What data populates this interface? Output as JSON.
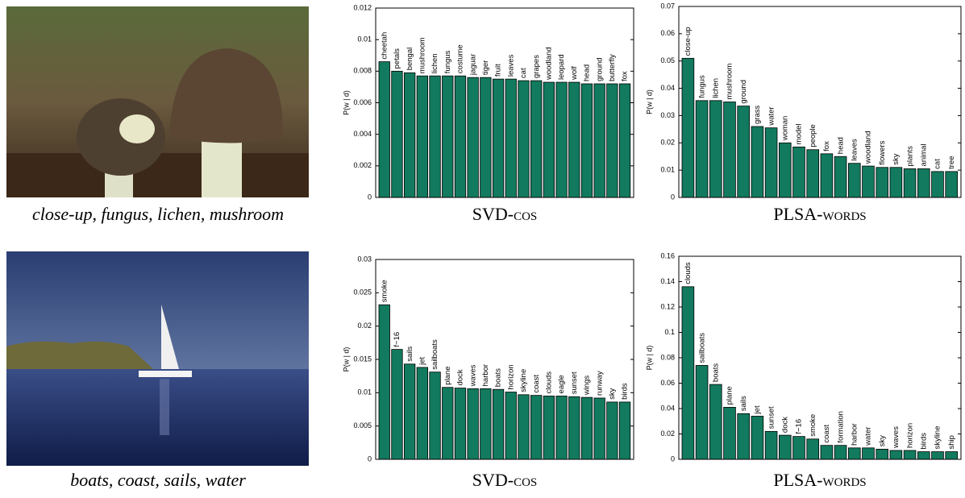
{
  "images": [
    {
      "caption": "close-up, fungus, lichen, mushroom"
    },
    {
      "caption": "boats, coast, sails, water"
    }
  ],
  "chart_data": [
    {
      "type": "bar",
      "title": "SVD-cos",
      "ylabel": "P(w | d)",
      "color": "#127a5e",
      "categories": [
        "cheetah",
        "petals",
        "bengal",
        "mushroom",
        "lichen",
        "fungus",
        "costume",
        "jaguar",
        "tiger",
        "fruit",
        "leaves",
        "cat",
        "grapes",
        "woodland",
        "leopard",
        "wolf",
        "head",
        "ground",
        "butterfly",
        "fox"
      ],
      "values": [
        0.0086,
        0.008,
        0.0079,
        0.0077,
        0.0077,
        0.0077,
        0.0077,
        0.0076,
        0.0076,
        0.0075,
        0.0075,
        0.0074,
        0.0074,
        0.0073,
        0.0073,
        0.0073,
        0.0072,
        0.0072,
        0.0072,
        0.0072
      ],
      "ylim": [
        0,
        0.012
      ],
      "yticks": [
        0,
        0.002,
        0.004,
        0.006,
        0.008,
        0.01,
        0.012
      ]
    },
    {
      "type": "bar",
      "title": "PLSA-words",
      "ylabel": "P(w | d)",
      "color": "#127a5e",
      "categories": [
        "close-up",
        "fungus",
        "lichen",
        "mushroom",
        "ground",
        "grass",
        "water",
        "woman",
        "model",
        "people",
        "fox",
        "head",
        "leaves",
        "woodland",
        "flowers",
        "sky",
        "plants",
        "animal",
        "cat",
        "tree"
      ],
      "values": [
        0.051,
        0.0355,
        0.0355,
        0.035,
        0.0335,
        0.026,
        0.0255,
        0.02,
        0.0185,
        0.0175,
        0.016,
        0.015,
        0.0125,
        0.0115,
        0.011,
        0.011,
        0.0105,
        0.0105,
        0.0095,
        0.0095
      ],
      "ylim": [
        0,
        0.07
      ],
      "yticks": [
        0,
        0.01,
        0.02,
        0.03,
        0.04,
        0.05,
        0.06,
        0.07
      ]
    },
    {
      "type": "bar",
      "title": "SVD-cos",
      "ylabel": "P(w | d)",
      "color": "#127a5e",
      "categories": [
        "smoke",
        "f−16",
        "sails",
        "jet",
        "sailboats",
        "plane",
        "dock",
        "waves",
        "harbor",
        "boats",
        "horizon",
        "skyline",
        "coast",
        "clouds",
        "eagle",
        "sunset",
        "wings",
        "runway",
        "sky",
        "birds"
      ],
      "values": [
        0.0232,
        0.0165,
        0.0143,
        0.0138,
        0.0131,
        0.0108,
        0.0107,
        0.0106,
        0.0106,
        0.0105,
        0.0101,
        0.0097,
        0.0096,
        0.0095,
        0.0095,
        0.0094,
        0.0093,
        0.0092,
        0.0086,
        0.0086
      ],
      "ylim": [
        0,
        0.03
      ],
      "yticks": [
        0,
        0.005,
        0.01,
        0.015,
        0.02,
        0.025,
        0.03
      ]
    },
    {
      "type": "bar",
      "title": "PLSA-words",
      "ylabel": "P(w | d)",
      "color": "#127a5e",
      "categories": [
        "clouds",
        "sailboats",
        "boats",
        "plane",
        "sails",
        "jet",
        "sunset",
        "dock",
        "f−16",
        "smoke",
        "coast",
        "formation",
        "harbor",
        "water",
        "sky",
        "waves",
        "horizon",
        "birds",
        "skyline",
        "ship"
      ],
      "values": [
        0.136,
        0.074,
        0.059,
        0.041,
        0.036,
        0.034,
        0.022,
        0.019,
        0.018,
        0.016,
        0.011,
        0.011,
        0.009,
        0.009,
        0.008,
        0.007,
        0.007,
        0.006,
        0.006,
        0.006
      ],
      "ylim": [
        0,
        0.16
      ],
      "yticks": [
        0,
        0.02,
        0.04,
        0.06,
        0.08,
        0.1,
        0.12,
        0.14,
        0.16
      ]
    }
  ]
}
